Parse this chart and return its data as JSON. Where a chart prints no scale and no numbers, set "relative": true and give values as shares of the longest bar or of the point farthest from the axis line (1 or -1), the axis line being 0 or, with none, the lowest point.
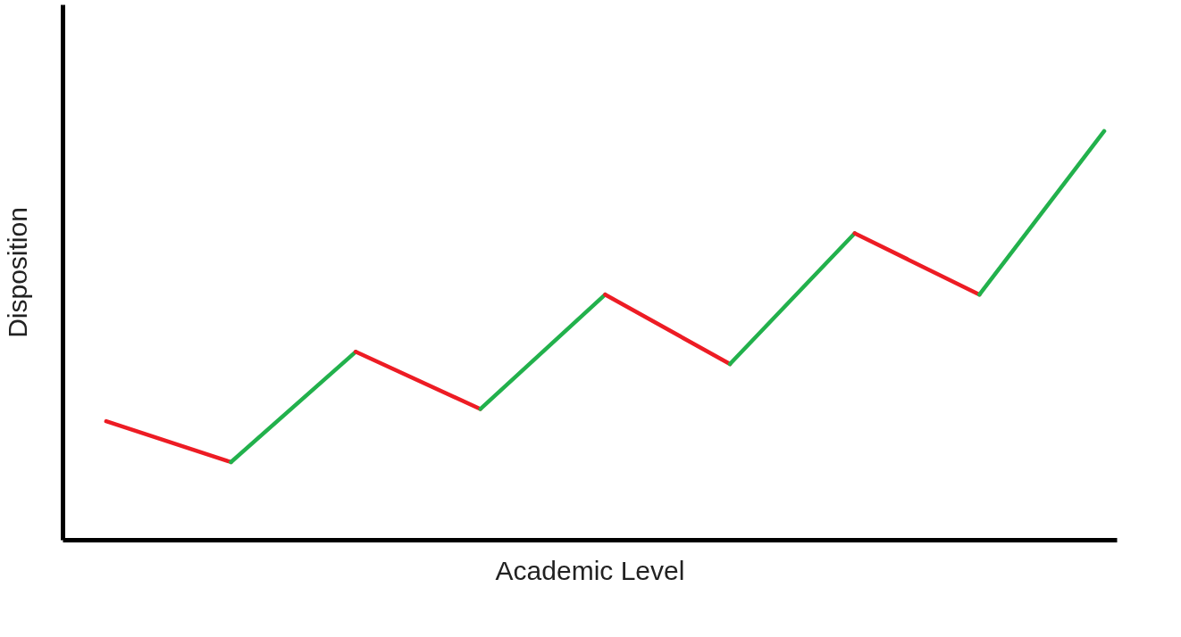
{
  "chart_data": {
    "type": "line",
    "relative": true,
    "xlabel": "Academic Level",
    "ylabel": "Disposition",
    "categories": [
      null,
      null,
      null,
      null,
      null,
      null,
      null,
      null,
      null
    ],
    "grid": false,
    "tick_labels": false,
    "marker": "none",
    "line_style": "solid",
    "series": [
      {
        "color": "#ed1c24",
        "values": [
          0.29,
          0.19,
          null,
          null,
          null,
          null,
          null,
          null,
          null
        ]
      },
      {
        "color": "#22b14c",
        "values": [
          null,
          0.19,
          0.46,
          null,
          null,
          null,
          null,
          null,
          null
        ]
      },
      {
        "color": "#ed1c24",
        "values": [
          null,
          null,
          0.46,
          0.32,
          null,
          null,
          null,
          null,
          null
        ]
      },
      {
        "color": "#22b14c",
        "values": [
          null,
          null,
          null,
          0.32,
          0.6,
          null,
          null,
          null,
          null
        ]
      },
      {
        "color": "#ed1c24",
        "values": [
          null,
          null,
          null,
          null,
          0.6,
          0.43,
          null,
          null,
          null
        ]
      },
      {
        "color": "#22b14c",
        "values": [
          null,
          null,
          null,
          null,
          null,
          0.43,
          0.75,
          null,
          null
        ]
      },
      {
        "color": "#ed1c24",
        "values": [
          null,
          null,
          null,
          null,
          null,
          null,
          0.75,
          0.6,
          null
        ]
      },
      {
        "color": "#22b14c",
        "values": [
          null,
          null,
          null,
          null,
          null,
          null,
          null,
          0.6,
          1.0
        ]
      }
    ]
  }
}
